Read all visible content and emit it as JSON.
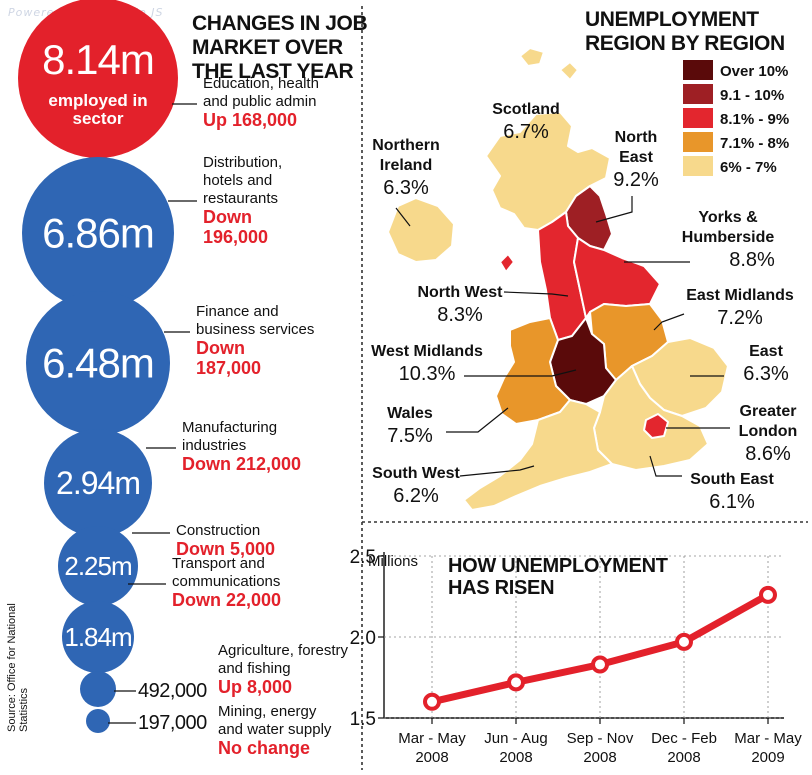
{
  "watermark": "Powered by Highslide JS",
  "source": "Source: Office for National Statistics",
  "job_market": {
    "title_lines": [
      "CHANGES IN JOB",
      "MARKET OVER",
      "THE LAST YEAR"
    ],
    "sectors": [
      {
        "value_label": "8.14m",
        "sub_label": "employed in sector",
        "name_lines": [
          "Education, health",
          "and public admin"
        ],
        "change_lines": [
          "Up 168,000"
        ],
        "color": "#e3212b",
        "value_m": 8.14
      },
      {
        "value_label": "6.86m",
        "sub_label": "",
        "name_lines": [
          "Distribution,",
          "hotels and",
          "restaurants"
        ],
        "change_lines": [
          "Down",
          "196,000"
        ],
        "color": "#2f66b4",
        "value_m": 6.86
      },
      {
        "value_label": "6.48m",
        "sub_label": "",
        "name_lines": [
          "Finance and",
          "business services"
        ],
        "change_lines": [
          "Down",
          "187,000"
        ],
        "color": "#2f66b4",
        "value_m": 6.48
      },
      {
        "value_label": "2.94m",
        "sub_label": "",
        "name_lines": [
          "Manufacturing",
          "industries"
        ],
        "change_lines": [
          "Down 212,000"
        ],
        "color": "#2f66b4",
        "value_m": 2.94
      },
      {
        "value_label": "2.25m",
        "sub_label": "",
        "name_lines": [
          "Construction"
        ],
        "change_lines": [
          "Down 5,000"
        ],
        "color": "#2f66b4",
        "value_m": 2.25
      },
      {
        "value_label": "1.84m",
        "sub_label": "",
        "name_lines": [
          "Transport and",
          "communications"
        ],
        "change_lines": [
          "Down 22,000"
        ],
        "color": "#2f66b4",
        "value_m": 1.84
      },
      {
        "value_label": "492,000",
        "sub_label": "",
        "name_lines": [
          "Agriculture, forestry",
          "and fishing"
        ],
        "change_lines": [
          "Up 8,000"
        ],
        "color": "#2f66b4",
        "value_m": 0.492
      },
      {
        "value_label": "197,000",
        "sub_label": "",
        "name_lines": [
          "Mining, energy",
          "and water supply"
        ],
        "change_lines": [
          "No change"
        ],
        "color": "#2f66b4",
        "value_m": 0.197
      }
    ]
  },
  "regions": {
    "title_lines": [
      "UNEMPLOYMENT",
      "REGION BY REGION"
    ],
    "legend": [
      {
        "label": "Over 10%",
        "color": "#5a0a0a"
      },
      {
        "label": "9.1 - 10%",
        "color": "#9e1f24"
      },
      {
        "label": "8.1% - 9%",
        "color": "#e3262e"
      },
      {
        "label": "7.1% - 8%",
        "color": "#e8962a"
      },
      {
        "label": "6% - 7%",
        "color": "#f7d98c"
      }
    ],
    "items": [
      {
        "name_lines": [
          "Scotland"
        ],
        "rate": "6.7%"
      },
      {
        "name_lines": [
          "Northern",
          "Ireland"
        ],
        "rate": "6.3%"
      },
      {
        "name_lines": [
          "North",
          "East"
        ],
        "rate": "9.2%"
      },
      {
        "name_lines": [
          "Yorks &",
          "Humberside"
        ],
        "rate": "8.8%"
      },
      {
        "name_lines": [
          "North West"
        ],
        "rate": "8.3%"
      },
      {
        "name_lines": [
          "East Midlands"
        ],
        "rate": "7.2%"
      },
      {
        "name_lines": [
          "West Midlands"
        ],
        "rate": "10.3%"
      },
      {
        "name_lines": [
          "East"
        ],
        "rate": "6.3%"
      },
      {
        "name_lines": [
          "Wales"
        ],
        "rate": "7.5%"
      },
      {
        "name_lines": [
          "Greater",
          "London"
        ],
        "rate": "8.6%"
      },
      {
        "name_lines": [
          "South West"
        ],
        "rate": "6.2%"
      },
      {
        "name_lines": [
          "South East"
        ],
        "rate": "6.1%"
      }
    ]
  },
  "chart_data": [
    {
      "type": "bubble",
      "title": "CHANGES IN JOB MARKET OVER THE LAST YEAR",
      "categories": [
        "Education, health and public admin",
        "Distribution, hotels and restaurants",
        "Finance and business services",
        "Manufacturing industries",
        "Construction",
        "Transport and communications",
        "Agriculture, forestry and fishing",
        "Mining, energy and water supply"
      ],
      "values_millions": [
        8.14,
        6.86,
        6.48,
        2.94,
        2.25,
        1.84,
        0.492,
        0.197
      ],
      "changes": [
        168000,
        -196000,
        -187000,
        -212000,
        -5000,
        -22000,
        8000,
        0
      ]
    },
    {
      "type": "choropleth",
      "title": "UNEMPLOYMENT REGION BY REGION",
      "regions": [
        "Scotland",
        "Northern Ireland",
        "North East",
        "Yorks & Humberside",
        "North West",
        "East Midlands",
        "West Midlands",
        "East",
        "Wales",
        "Greater London",
        "South West",
        "South East"
      ],
      "values_percent": [
        6.7,
        6.3,
        9.2,
        8.8,
        8.3,
        7.2,
        10.3,
        6.3,
        7.5,
        8.6,
        6.2,
        6.1
      ]
    },
    {
      "type": "line",
      "title": "HOW UNEMPLOYMENT HAS RISEN",
      "title_lines": [
        "HOW UNEMPLOYMENT",
        "HAS RISEN"
      ],
      "ylabel": "Millions",
      "ylim": [
        1.5,
        2.5
      ],
      "yticks": [
        "2.5",
        "2.0",
        "1.5"
      ],
      "ytick_values": [
        2.5,
        2.0,
        1.5
      ],
      "categories": [
        [
          "Mar - May",
          "2008"
        ],
        [
          "Jun - Aug",
          "2008"
        ],
        [
          "Sep - Nov",
          "2008"
        ],
        [
          "Dec - Feb",
          "2008"
        ],
        [
          "Mar - May",
          "2009"
        ]
      ],
      "values": [
        1.6,
        1.72,
        1.83,
        1.97,
        2.26
      ],
      "line_color": "#e3212b"
    }
  ]
}
